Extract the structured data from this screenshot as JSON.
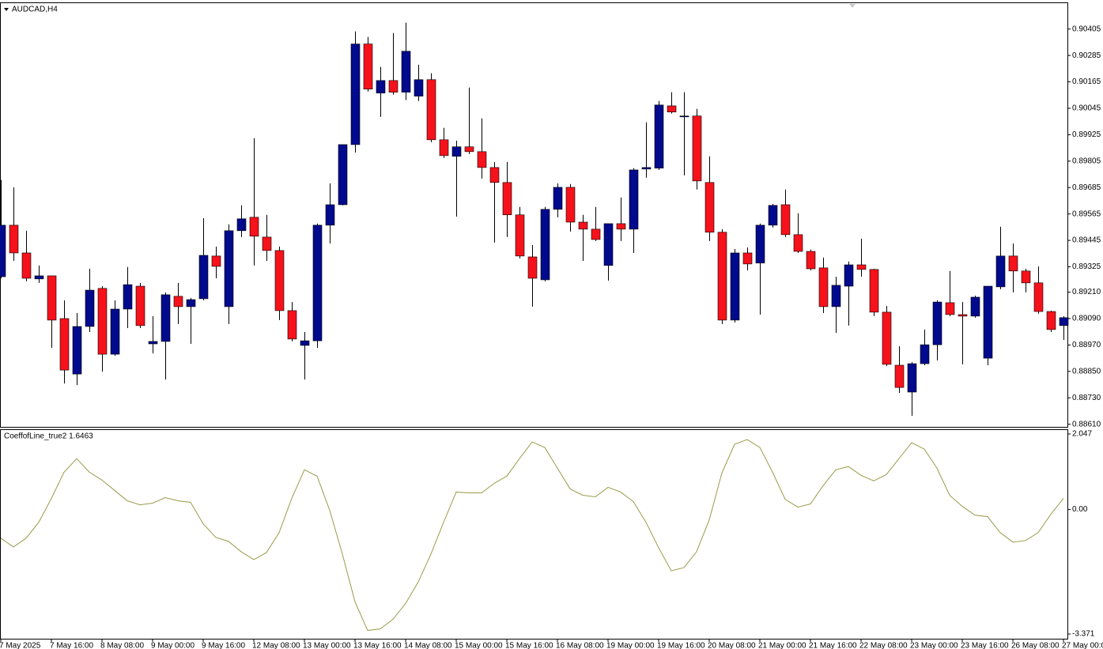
{
  "chart_data": [
    {
      "type": "candlestick",
      "title": "AUDCAD,H4",
      "categories": [
        "7 May 2025",
        null,
        null,
        null,
        "7 May 16:00",
        null,
        null,
        null,
        "8 May 08:00",
        null,
        null,
        null,
        "9 May 00:00",
        null,
        null,
        null,
        "9 May 16:00",
        null,
        null,
        null,
        "12 May 08:00",
        null,
        null,
        null,
        "13 May 00:00",
        null,
        null,
        null,
        "13 May 16:00",
        null,
        null,
        null,
        "14 May 08:00",
        null,
        null,
        null,
        "15 May 00:00",
        null,
        null,
        null,
        "15 May 16:00",
        null,
        null,
        null,
        "16 May 08:00",
        null,
        null,
        null,
        "19 May 00:00",
        null,
        null,
        null,
        "19 May 16:00",
        null,
        null,
        null,
        "20 May 08:00",
        null,
        null,
        null,
        "21 May 00:00",
        null,
        null,
        null,
        "21 May 16:00",
        null,
        null,
        null,
        "22 May 08:00",
        null,
        null,
        null,
        "23 May 00:00",
        null,
        null,
        null,
        "23 May 16:00",
        null,
        null,
        null,
        "26 May 08:00",
        null,
        null,
        null,
        "27 May 00:00"
      ],
      "open": [
        0.8928,
        0.89514,
        0.89388,
        0.8927,
        0.89284,
        0.8909,
        0.88838,
        0.89054,
        0.89227,
        0.88928,
        0.89133,
        0.89237,
        0.88975,
        0.88986,
        0.89191,
        0.89144,
        0.8918,
        0.89374,
        0.89144,
        0.89489,
        0.8955,
        0.8946,
        0.89399,
        0.89126,
        0.88968,
        0.88989,
        0.89514,
        0.89607,
        0.8988,
        0.90337,
        0.90114,
        0.90171,
        0.90118,
        0.901,
        0.90175,
        0.89902,
        0.89827,
        0.8987,
        0.89848,
        0.89776,
        0.89708,
        0.89561,
        0.8937,
        0.89266,
        0.89586,
        0.89686,
        0.89528,
        0.89496,
        0.89331,
        0.89521,
        0.89496,
        0.89769,
        0.89773,
        0.90056,
        0.90006,
        0.9001,
        0.89708,
        0.89482,
        0.89083,
        0.89388,
        0.89342,
        0.89514,
        0.89607,
        0.89471,
        0.89395,
        0.8932,
        0.89144,
        0.89237,
        0.89334,
        0.89313,
        0.89119,
        0.88878,
        0.88756,
        0.88885,
        0.88971,
        0.89162,
        0.89108,
        0.89101,
        0.8891,
        0.89234,
        0.89374,
        0.89306,
        0.89252,
        0.89122,
        0.89058
      ],
      "high": [
        0.89719,
        0.89686,
        0.89489,
        0.89331,
        0.89284,
        0.89173,
        0.89115,
        0.89316,
        0.89237,
        0.89173,
        0.89324,
        0.89252,
        0.89101,
        0.89209,
        0.89252,
        0.89183,
        0.89546,
        0.89417,
        0.89518,
        0.89604,
        0.89909,
        0.89561,
        0.89417,
        0.89165,
        0.89029,
        0.89521,
        0.89704,
        0.8988,
        0.90394,
        0.90369,
        0.90233,
        0.90387,
        0.90434,
        0.90243,
        0.90204,
        0.89956,
        0.89898,
        0.90139,
        0.89999,
        0.89801,
        0.89801,
        0.89597,
        0.89424,
        0.89597,
        0.89704,
        0.89701,
        0.89561,
        0.89597,
        0.89521,
        0.8964,
        0.89773,
        0.89981,
        0.90078,
        0.90118,
        0.90118,
        0.90042,
        0.89827,
        0.89496,
        0.89406,
        0.89413,
        0.89521,
        0.89611,
        0.89676,
        0.89568,
        0.89403,
        0.89367,
        0.8928,
        0.89349,
        0.89453,
        0.89316,
        0.89147,
        0.88964,
        0.88892,
        0.8904,
        0.89173,
        0.89306,
        0.89165,
        0.89194,
        0.89237,
        0.89507,
        0.89431,
        0.89316,
        0.89327,
        0.89126,
        0.89101
      ],
      "low": [
        0.89273,
        0.89352,
        0.89259,
        0.89252,
        0.88957,
        0.88795,
        0.88788,
        0.89029,
        0.88849,
        0.88921,
        0.89047,
        0.89047,
        0.88932,
        0.88813,
        0.89065,
        0.88975,
        0.89173,
        0.89273,
        0.89065,
        0.8946,
        0.89331,
        0.89352,
        0.89083,
        0.88986,
        0.88813,
        0.88957,
        0.89431,
        0.89604,
        0.89844,
        0.90121,
        0.90006,
        0.90107,
        0.90082,
        0.90078,
        0.89891,
        0.89819,
        0.89553,
        0.89837,
        0.89726,
        0.89435,
        0.8946,
        0.89363,
        0.89144,
        0.89259,
        0.8955,
        0.89485,
        0.89352,
        0.89442,
        0.89262,
        0.89442,
        0.89388,
        0.8973,
        0.89765,
        0.90021,
        0.8974,
        0.89676,
        0.89442,
        0.89065,
        0.89072,
        0.89309,
        0.89108,
        0.89503,
        0.8946,
        0.89388,
        0.89309,
        0.89115,
        0.89025,
        0.89058,
        0.8928,
        0.89101,
        0.88874,
        0.88752,
        0.88648,
        0.88878,
        0.889,
        0.89101,
        0.88882,
        0.89094,
        0.88878,
        0.89223,
        0.89209,
        0.89209,
        0.89112,
        0.89029,
        0.88993
      ],
      "close": [
        0.89514,
        0.89388,
        0.89273,
        0.89284,
        0.89083,
        0.88856,
        0.89054,
        0.89219,
        0.88928,
        0.89133,
        0.89244,
        0.89058,
        0.88986,
        0.89198,
        0.89144,
        0.89176,
        0.89377,
        0.89327,
        0.89489,
        0.89543,
        0.89464,
        0.89399,
        0.89126,
        0.88997,
        0.88989,
        0.89514,
        0.89607,
        0.8988,
        0.90337,
        0.90132,
        0.90171,
        0.90118,
        0.90304,
        0.90175,
        0.89902,
        0.8983,
        0.8987,
        0.89848,
        0.89776,
        0.89708,
        0.89561,
        0.89374,
        0.89273,
        0.89586,
        0.89686,
        0.89528,
        0.89496,
        0.89449,
        0.89521,
        0.89496,
        0.89765,
        0.89776,
        0.9006,
        0.90028,
        0.9001,
        0.89715,
        0.89482,
        0.89083,
        0.89388,
        0.89338,
        0.89514,
        0.89604,
        0.89471,
        0.89395,
        0.89316,
        0.89144,
        0.89241,
        0.89334,
        0.89313,
        0.89119,
        0.88882,
        0.88777,
        0.88885,
        0.88971,
        0.89165,
        0.89108,
        0.89101,
        0.89187,
        0.89237,
        0.89374,
        0.89306,
        0.89252,
        0.89122,
        0.8904,
        0.89094
      ],
      "up_color": "#000a8c",
      "down_color": "#f5121b",
      "ylim": [
        0.88598,
        0.90526
      ],
      "yticks": [
        0.90405,
        0.90285,
        0.90165,
        0.90045,
        0.89925,
        0.89805,
        0.89685,
        0.89565,
        0.89445,
        0.89325,
        {
          "value": 0.8921,
          "label": "0.89210"
        },
        {
          "value": 0.8909,
          "label": "0.89090"
        },
        {
          "value": 0.8897,
          "label": "0.88970"
        },
        {
          "value": 0.8885,
          "label": "0.88850"
        },
        {
          "value": 0.8873,
          "label": "0.88730"
        },
        {
          "value": 0.8861,
          "label": "0.88610"
        }
      ],
      "grid": false
    },
    {
      "type": "line",
      "title": "CoeffofLine_true2 1.6463",
      "color": "#9a9a4a",
      "values": [
        -0.776,
        -1.013,
        -0.776,
        -0.345,
        0.302,
        1.013,
        1.379,
        1.013,
        0.797,
        0.517,
        0.237,
        0.129,
        0.172,
        0.323,
        0.237,
        0.194,
        -0.388,
        -0.754,
        -0.862,
        -1.142,
        -1.357,
        -1.164,
        -0.625,
        0.302,
        1.077,
        0.905,
        -0.022,
        -1.207,
        -2.499,
        -3.275,
        -3.232,
        -2.973,
        -2.543,
        -1.961,
        -1.207,
        -0.345,
        0.474,
        0.452,
        0.452,
        0.711,
        0.905,
        1.379,
        1.831,
        1.681,
        1.12,
        0.56,
        0.388,
        0.345,
        0.603,
        0.474,
        0.215,
        -0.345,
        -1.034,
        -1.659,
        -1.573,
        -1.142,
        -0.28,
        0.991,
        1.767,
        1.896,
        1.681,
        1.013,
        0.28,
        0.065,
        0.151,
        0.646,
        1.077,
        1.164,
        0.927,
        0.776,
        0.948,
        1.379,
        1.81,
        1.638,
        1.12,
        0.388,
        0.086,
        -0.151,
        -0.194,
        -0.625,
        -0.883,
        -0.84,
        -0.625,
        -0.129,
        0.302
      ],
      "ylim": [
        -3.499,
        2.175
      ],
      "yticks": [
        2.047,
        {
          "value": 0,
          "label": "0.00"
        },
        -3.371
      ],
      "grid": false
    }
  ]
}
